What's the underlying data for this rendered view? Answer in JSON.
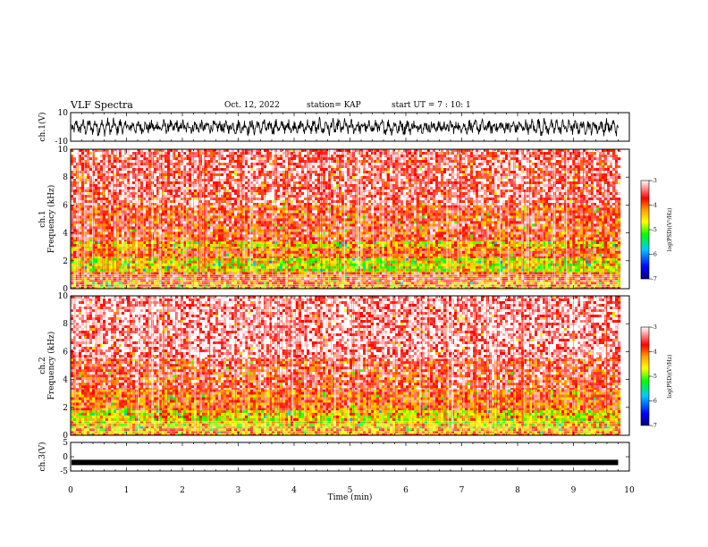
{
  "header": {
    "title": "VLF Spectra",
    "date": "Oct. 12, 2022",
    "station": "station= KAP",
    "start": "start  UT =   7 : 10: 1"
  },
  "chart_data": [
    {
      "type": "line",
      "panel": "ch1-waveform",
      "ylabel": "ch.1(V)",
      "ylim": [
        -10,
        10
      ],
      "y_ticks": [
        "10",
        "-10"
      ],
      "xlim": [
        0,
        10
      ],
      "x_unit": "min",
      "note_values": "noisy waveform oscillating roughly between -6 and 6 V over 0-9.8 min"
    },
    {
      "type": "heatmap",
      "panel": "ch1-spectrogram",
      "ylabel": "ch.1\nFrequency (kHz)",
      "ylim": [
        0,
        10
      ],
      "y_ticks": [
        "0",
        "2",
        "4",
        "6",
        "8",
        "10"
      ],
      "xlim": [
        0,
        10
      ],
      "data_extent_min": 9.8,
      "bands": [
        {
          "from_khz": 0,
          "to_khz": 0.5,
          "level": -4.2
        },
        {
          "from_khz": 0.5,
          "to_khz": 1.2,
          "level": -3.8
        },
        {
          "from_khz": 1.2,
          "to_khz": 2.2,
          "level": -4.6
        },
        {
          "from_khz": 2.2,
          "to_khz": 2.9,
          "level": -3.9
        },
        {
          "from_khz": 2.9,
          "to_khz": 3.4,
          "level": -4.4
        },
        {
          "from_khz": 3.4,
          "to_khz": 6.0,
          "level": -3.7
        },
        {
          "from_khz": 6.0,
          "to_khz": 10.0,
          "level": -3.4
        }
      ],
      "colorbar": {
        "label": "log(PSD)(V²/Hz)",
        "ticks": [
          "-3",
          "-4",
          "-5",
          "-6",
          "-7"
        ],
        "range": [
          -7,
          -3
        ]
      }
    },
    {
      "type": "heatmap",
      "panel": "ch2-spectrogram",
      "ylabel": "ch.2\nFrequency (kHz)",
      "ylim": [
        0,
        10
      ],
      "y_ticks": [
        "0",
        "2",
        "4",
        "6",
        "8",
        "10"
      ],
      "xlim": [
        0,
        10
      ],
      "data_extent_min": 9.8,
      "bands": [
        {
          "from_khz": 0,
          "to_khz": 0.5,
          "level": -4.2
        },
        {
          "from_khz": 0.5,
          "to_khz": 1.8,
          "level": -4.5
        },
        {
          "from_khz": 1.8,
          "to_khz": 3.3,
          "level": -3.9
        },
        {
          "from_khz": 3.3,
          "to_khz": 5.5,
          "level": -3.6
        },
        {
          "from_khz": 5.5,
          "to_khz": 10.0,
          "level": -3.2
        }
      ],
      "colorbar": {
        "label": "log(PSD)(V²/Hz)",
        "ticks": [
          "-3",
          "-4",
          "-5",
          "-6",
          "-7"
        ],
        "range": [
          -7,
          -3
        ]
      }
    },
    {
      "type": "line",
      "panel": "ch3-waveform",
      "ylabel": "ch.3(V)",
      "ylim": [
        -5,
        5
      ],
      "y_ticks": [
        "5",
        "0",
        "-5"
      ],
      "xlim": [
        0,
        10
      ],
      "note_values": "flat trace near -2 V with narrow jitter over 0-9.8 min"
    }
  ],
  "x_axis": {
    "label": "Time (min)",
    "ticks": [
      "0",
      "1",
      "2",
      "3",
      "4",
      "5",
      "6",
      "7",
      "8",
      "9",
      "10"
    ]
  },
  "colors": {
    "colormap": [
      "#000080",
      "#0000ff",
      "#00c8ff",
      "#00ff00",
      "#ffff00",
      "#ffa000",
      "#ff0000",
      "#ffffff"
    ]
  }
}
